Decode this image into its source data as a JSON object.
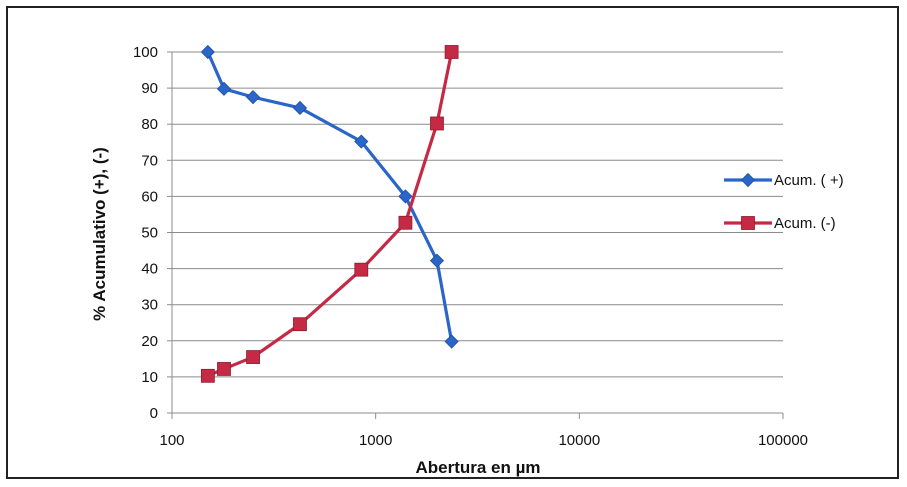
{
  "chart_data": {
    "type": "line",
    "xlabel": "Abertura en µm",
    "ylabel": "% Acumulativo (+), (-)",
    "x_scale": "log",
    "xlim": [
      100,
      100000
    ],
    "ylim": [
      0,
      100
    ],
    "x_ticks": [
      "100",
      "1000",
      "10000",
      "100000"
    ],
    "y_ticks": [
      "0",
      "10",
      "20",
      "30",
      "40",
      "50",
      "60",
      "70",
      "80",
      "90",
      "100"
    ],
    "grid": "horizontal",
    "legend_position": "right",
    "series": [
      {
        "name": "Acum. ( +)",
        "color": "#2a66c9",
        "marker": "diamond",
        "points": [
          {
            "x": 150,
            "y": 100
          },
          {
            "x": 180,
            "y": 89.8
          },
          {
            "x": 250,
            "y": 87.5
          },
          {
            "x": 425,
            "y": 84.5
          },
          {
            "x": 850,
            "y": 75.2
          },
          {
            "x": 1400,
            "y": 60
          },
          {
            "x": 2000,
            "y": 42.2
          },
          {
            "x": 2360,
            "y": 19.8
          }
        ]
      },
      {
        "name": "Acum. (-)",
        "color": "#c52a45",
        "marker": "square",
        "points": [
          {
            "x": 150,
            "y": 10.3
          },
          {
            "x": 180,
            "y": 12.2
          },
          {
            "x": 250,
            "y": 15.5
          },
          {
            "x": 425,
            "y": 24.6
          },
          {
            "x": 850,
            "y": 39.7
          },
          {
            "x": 1400,
            "y": 52.7
          },
          {
            "x": 2000,
            "y": 80.2
          },
          {
            "x": 2360,
            "y": 100
          }
        ]
      }
    ]
  }
}
